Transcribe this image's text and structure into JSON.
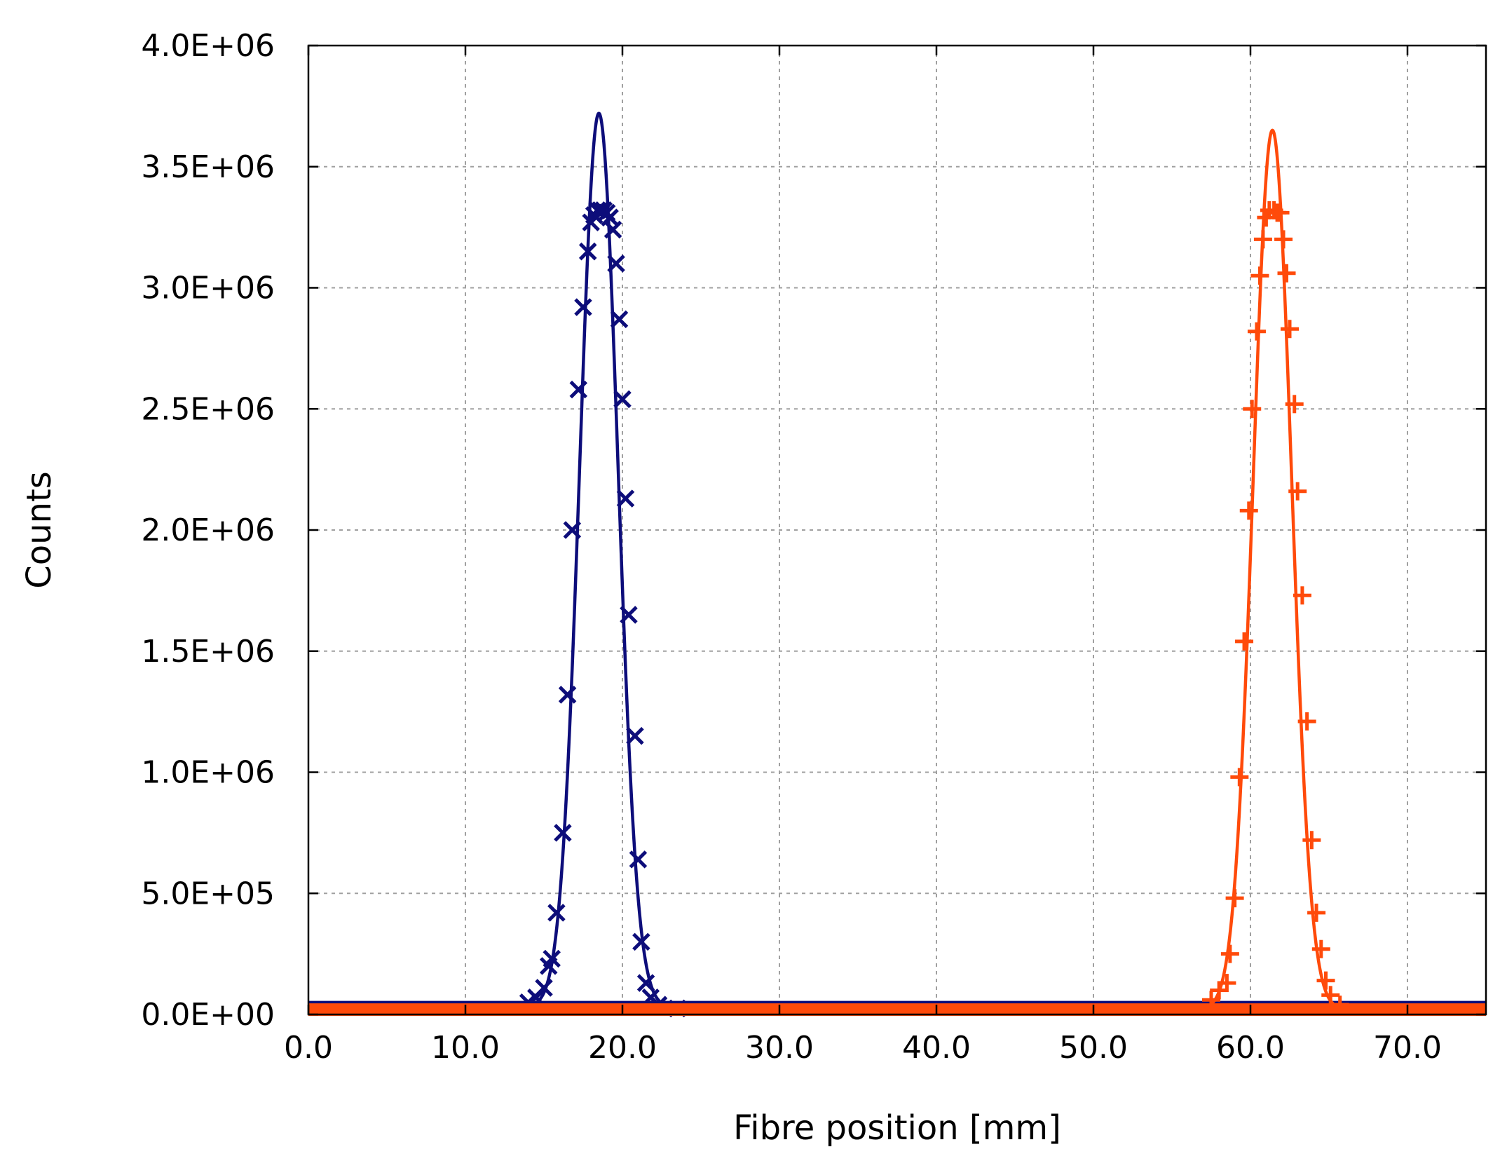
{
  "chart_data": {
    "type": "line",
    "title": "",
    "xlabel": "Fibre position [mm]",
    "ylabel": "Counts",
    "xlim": [
      0,
      75
    ],
    "ylim": [
      0,
      4000000
    ],
    "xticks": [
      0,
      10,
      20,
      30,
      40,
      50,
      60,
      70
    ],
    "xtick_labels": [
      "0.0",
      "10.0",
      "20.0",
      "30.0",
      "40.0",
      "50.0",
      "60.0",
      "70.0"
    ],
    "yticks": [
      0,
      500000,
      1000000,
      1500000,
      2000000,
      2500000,
      3000000,
      3500000,
      4000000
    ],
    "ytick_labels": [
      "0.0E+00",
      "5.0E+05",
      "1.0E+06",
      "1.5E+06",
      "2.0E+06",
      "2.5E+06",
      "3.0E+06",
      "3.5E+06",
      "4.0E+06"
    ],
    "grid": true,
    "legend": "none",
    "series": [
      {
        "color": "#0d0d7a",
        "marker": "x",
        "fit": {
          "type": "gaussian",
          "center": 18.5,
          "sigma": 1.22,
          "amplitude": 3690000,
          "baseline": 30000
        },
        "points": [
          [
            14.0,
            50000
          ],
          [
            14.5,
            70000
          ],
          [
            15.0,
            110000
          ],
          [
            15.3,
            200000
          ],
          [
            15.5,
            230000
          ],
          [
            15.8,
            420000
          ],
          [
            16.2,
            750000
          ],
          [
            16.5,
            1320000
          ],
          [
            16.8,
            2000000
          ],
          [
            17.2,
            2580000
          ],
          [
            17.5,
            2920000
          ],
          [
            17.8,
            3150000
          ],
          [
            18.0,
            3270000
          ],
          [
            18.2,
            3300000
          ],
          [
            18.4,
            3320000
          ],
          [
            18.6,
            3320000
          ],
          [
            18.8,
            3320000
          ],
          [
            19.0,
            3310000
          ],
          [
            19.2,
            3290000
          ],
          [
            19.4,
            3240000
          ],
          [
            19.6,
            3100000
          ],
          [
            19.8,
            2870000
          ],
          [
            20.0,
            2540000
          ],
          [
            20.2,
            2130000
          ],
          [
            20.4,
            1650000
          ],
          [
            20.8,
            1150000
          ],
          [
            21.0,
            640000
          ],
          [
            21.2,
            300000
          ],
          [
            21.5,
            130000
          ],
          [
            21.8,
            70000
          ],
          [
            22.3,
            40000
          ],
          [
            23.5,
            25000
          ]
        ]
      },
      {
        "color": "#ff4a0a",
        "marker": "+",
        "fit": {
          "type": "gaussian",
          "center": 61.4,
          "sigma": 1.22,
          "amplitude": 3630000,
          "baseline": 20000
        },
        "points": [
          [
            57.5,
            60000
          ],
          [
            58.0,
            100000
          ],
          [
            58.5,
            130000
          ],
          [
            58.7,
            250000
          ],
          [
            59.0,
            480000
          ],
          [
            59.3,
            980000
          ],
          [
            59.6,
            1540000
          ],
          [
            59.9,
            2080000
          ],
          [
            60.1,
            2500000
          ],
          [
            60.4,
            2820000
          ],
          [
            60.6,
            3050000
          ],
          [
            60.8,
            3200000
          ],
          [
            61.0,
            3290000
          ],
          [
            61.2,
            3320000
          ],
          [
            61.5,
            3320000
          ],
          [
            61.7,
            3310000
          ],
          [
            61.9,
            3310000
          ],
          [
            62.1,
            3200000
          ],
          [
            62.3,
            3060000
          ],
          [
            62.5,
            2830000
          ],
          [
            62.8,
            2520000
          ],
          [
            63.0,
            2160000
          ],
          [
            63.3,
            1730000
          ],
          [
            63.6,
            1210000
          ],
          [
            63.9,
            720000
          ],
          [
            64.2,
            420000
          ],
          [
            64.5,
            270000
          ],
          [
            64.8,
            140000
          ],
          [
            65.1,
            80000
          ],
          [
            65.7,
            40000
          ]
        ]
      }
    ]
  }
}
